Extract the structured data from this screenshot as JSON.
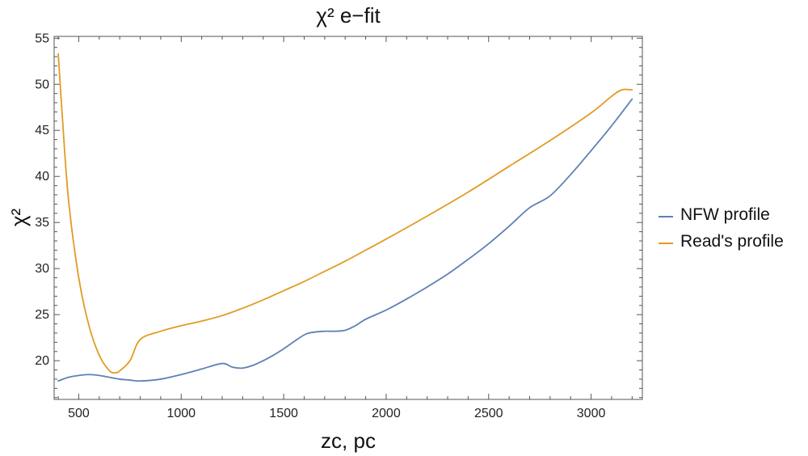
{
  "chart_data": {
    "type": "line",
    "title": "χ² e−fit",
    "xlabel": "zc, pc",
    "ylabel": "χ²",
    "xlim": [
      380,
      3250
    ],
    "ylim": [
      15.8,
      55.2
    ],
    "x_ticks": [
      500,
      1000,
      1500,
      2000,
      2500,
      3000
    ],
    "y_ticks": [
      20,
      25,
      30,
      35,
      40,
      45,
      50,
      55
    ],
    "legend_position": "right",
    "series": [
      {
        "name": "NFW profile",
        "color": "#5e81b5",
        "x": [
          400,
          450,
          500,
          550,
          600,
          650,
          700,
          750,
          800,
          900,
          1000,
          1100,
          1200,
          1250,
          1300,
          1350,
          1400,
          1450,
          1500,
          1600,
          1650,
          1700,
          1750,
          1800,
          1850,
          1900,
          2000,
          2100,
          2200,
          2300,
          2400,
          2500,
          2600,
          2700,
          2800,
          2900,
          3000,
          3100,
          3200
        ],
        "y": [
          17.8,
          18.2,
          18.4,
          18.5,
          18.4,
          18.2,
          18.0,
          17.9,
          17.8,
          18.0,
          18.5,
          19.1,
          19.7,
          19.3,
          19.2,
          19.5,
          20.0,
          20.6,
          21.3,
          22.8,
          23.1,
          23.2,
          23.2,
          23.3,
          23.8,
          24.5,
          25.5,
          26.7,
          28.0,
          29.4,
          31.0,
          32.7,
          34.6,
          36.6,
          37.9,
          40.2,
          42.8,
          45.5,
          48.4
        ]
      },
      {
        "name": "Read's profile",
        "color": "#e19c24",
        "x": [
          400,
          420,
          450,
          500,
          550,
          600,
          650,
          680,
          700,
          750,
          800,
          900,
          1000,
          1100,
          1200,
          1300,
          1400,
          1500,
          1600,
          1700,
          1800,
          1900,
          2000,
          2200,
          2400,
          2600,
          2800,
          3000,
          3100,
          3150,
          3200
        ],
        "y": [
          53.3,
          46.5,
          37.5,
          29.0,
          23.8,
          20.6,
          18.9,
          18.7,
          18.9,
          20.0,
          22.3,
          23.2,
          23.8,
          24.3,
          24.9,
          25.7,
          26.6,
          27.6,
          28.6,
          29.7,
          30.8,
          32.0,
          33.2,
          35.7,
          38.3,
          41.1,
          43.9,
          46.9,
          48.7,
          49.4,
          49.4
        ]
      }
    ]
  }
}
